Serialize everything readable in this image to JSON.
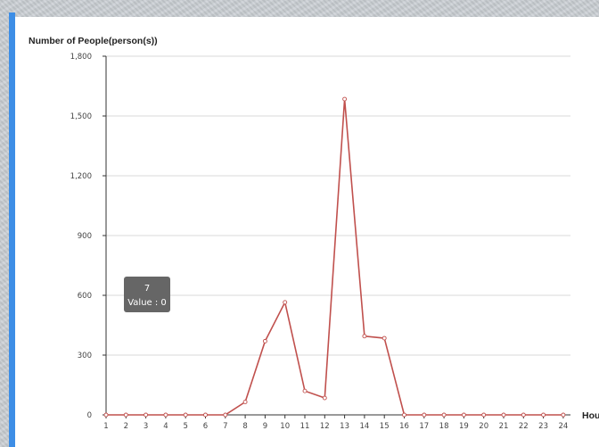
{
  "chart_data": {
    "type": "line",
    "ylabel": "Number of People(person(s))",
    "xlabel": "Hou",
    "ylim": [
      0,
      1800
    ],
    "yticks": [
      0,
      300,
      600,
      900,
      1200,
      1500,
      1800
    ],
    "ytick_labels": [
      "0",
      "300",
      "600",
      "900",
      "1,200",
      "1,500",
      "1,800"
    ],
    "categories": [
      "1",
      "2",
      "3",
      "4",
      "5",
      "6",
      "7",
      "8",
      "9",
      "10",
      "11",
      "12",
      "13",
      "14",
      "15",
      "16",
      "17",
      "18",
      "19",
      "20",
      "21",
      "22",
      "23",
      "24"
    ],
    "series": [
      {
        "values": [
          0,
          0,
          0,
          0,
          0,
          0,
          0,
          65,
          370,
          565,
          120,
          85,
          1585,
          395,
          385,
          0,
          0,
          0,
          0,
          0,
          0,
          0,
          0,
          0
        ],
        "color": "#c0504d"
      }
    ],
    "grid": true,
    "tooltip": {
      "title": "7",
      "value": "Value : 0"
    }
  }
}
